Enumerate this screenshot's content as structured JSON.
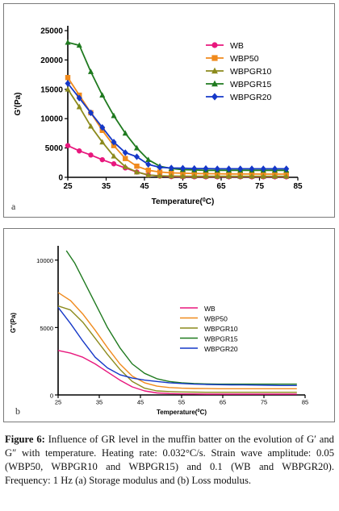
{
  "figure": {
    "caption_label": "Figure 6:",
    "caption_text": "Influence of GR level in the muffin batter on the evolution of G′ and G″ with temperature. Heating rate: 0.032°C/s. Strain wave amplitude: 0.05 (WBP50, WBPGR10 and WBPGR15) and 0.1 (WB and WBPGR20). Frequency: 1 Hz (a) Storage modulus and (b) Loss modulus."
  },
  "chart_data": [
    {
      "type": "line",
      "panel_label": "a",
      "ylabel": "G'(Pa)",
      "xlabel_main": "Temperature(",
      "xlabel_sup": "0",
      "xlabel_end": "C)",
      "xlim": [
        25,
        85
      ],
      "ylim": [
        0,
        25000
      ],
      "x_ticks": [
        25,
        35,
        45,
        55,
        65,
        75,
        85
      ],
      "y_ticks": [
        0,
        5000,
        10000,
        15000,
        20000,
        25000
      ],
      "grid": false,
      "legend_position": "top-right",
      "markers": true,
      "series": [
        {
          "name": "WB",
          "color": "#e8177d",
          "marker": "circle",
          "x": [
            25,
            28,
            31,
            34,
            37,
            40,
            43,
            46,
            49,
            52,
            55,
            58,
            61,
            64,
            67,
            70,
            73,
            76,
            79,
            82
          ],
          "y": [
            5400,
            4500,
            3800,
            3000,
            2300,
            1600,
            900,
            400,
            200,
            120,
            100,
            90,
            85,
            80,
            80,
            80,
            80,
            80,
            80,
            80
          ]
        },
        {
          "name": "WBP50",
          "color": "#f08a1c",
          "marker": "square",
          "x": [
            25,
            28,
            31,
            34,
            37,
            40,
            43,
            46,
            49,
            52,
            55,
            58,
            61,
            64,
            67,
            70,
            73,
            76,
            79,
            82
          ],
          "y": [
            17000,
            14000,
            11000,
            8000,
            5400,
            3200,
            1900,
            1200,
            900,
            750,
            700,
            650,
            620,
            600,
            580,
            570,
            560,
            550,
            550,
            550
          ]
        },
        {
          "name": "WBPGR10",
          "color": "#8c8a1c",
          "marker": "triangle",
          "x": [
            25,
            28,
            31,
            34,
            37,
            40,
            43,
            46,
            49,
            52,
            55,
            58,
            61,
            64,
            67,
            70,
            73,
            76,
            79,
            82
          ],
          "y": [
            15000,
            12000,
            8700,
            6000,
            3600,
            1800,
            900,
            400,
            250,
            200,
            180,
            170,
            160,
            160,
            160,
            160,
            160,
            160,
            160,
            160
          ]
        },
        {
          "name": "WBPGR15",
          "color": "#1f7a1f",
          "marker": "triangle",
          "x": [
            25,
            28,
            31,
            34,
            37,
            40,
            43,
            46,
            49,
            52,
            55,
            58,
            61,
            64,
            67,
            70,
            73,
            76,
            79,
            82
          ],
          "y": [
            23000,
            22500,
            18000,
            14000,
            10500,
            7500,
            5000,
            3000,
            1900,
            1500,
            1300,
            1250,
            1200,
            1200,
            1200,
            1200,
            1200,
            1200,
            1200,
            1200
          ]
        },
        {
          "name": "WBPGR20",
          "color": "#1538c8",
          "marker": "diamond",
          "x": [
            25,
            28,
            31,
            34,
            37,
            40,
            43,
            46,
            49,
            52,
            55,
            58,
            61,
            64,
            67,
            70,
            73,
            76,
            79,
            82
          ],
          "y": [
            16000,
            13500,
            11000,
            8500,
            6000,
            4200,
            3500,
            2200,
            1700,
            1600,
            1550,
            1500,
            1500,
            1450,
            1450,
            1450,
            1450,
            1450,
            1450,
            1450
          ]
        }
      ]
    },
    {
      "type": "line",
      "panel_label": "b",
      "ylabel": "G''(Pa)",
      "xlabel_main": "Temperature(",
      "xlabel_sup": "0",
      "xlabel_end": "C)",
      "xlim": [
        25,
        85
      ],
      "ylim": [
        0,
        10700
      ],
      "x_ticks": [
        25,
        35,
        45,
        55,
        65,
        75,
        85
      ],
      "y_ticks": [
        0,
        5000,
        10000
      ],
      "grid": false,
      "legend_position": "middle-right",
      "markers": false,
      "series": [
        {
          "name": "WB",
          "color": "#e8177d",
          "x": [
            25,
            28,
            31,
            34,
            37,
            40,
            43,
            46,
            49,
            52,
            55,
            58,
            61,
            64,
            67,
            70,
            73,
            76,
            79,
            83
          ],
          "y": [
            3300,
            3100,
            2800,
            2300,
            1700,
            1100,
            600,
            300,
            150,
            100,
            80,
            70,
            60,
            60,
            60,
            60,
            60,
            60,
            60,
            60
          ]
        },
        {
          "name": "WBP50",
          "color": "#f08a1c",
          "x": [
            25,
            28,
            31,
            34,
            37,
            40,
            43,
            46,
            49,
            52,
            55,
            58,
            61,
            64,
            67,
            70,
            73,
            76,
            79,
            83
          ],
          "y": [
            7600,
            7000,
            6000,
            4800,
            3500,
            2300,
            1400,
            900,
            650,
            550,
            500,
            480,
            470,
            460,
            460,
            460,
            460,
            460,
            460,
            460
          ]
        },
        {
          "name": "WBPGR10",
          "color": "#8c8a1c",
          "x": [
            25,
            28,
            31,
            34,
            37,
            40,
            43,
            46,
            49,
            52,
            55,
            58,
            61,
            64,
            67,
            70,
            73,
            76,
            79,
            83
          ],
          "y": [
            6600,
            6300,
            5400,
            4200,
            3000,
            1900,
            1000,
            500,
            300,
            250,
            220,
            210,
            200,
            200,
            200,
            200,
            200,
            200,
            200,
            200
          ]
        },
        {
          "name": "WBPGR15",
          "color": "#1f7a1f",
          "x": [
            27,
            29,
            31,
            34,
            37,
            40,
            43,
            46,
            49,
            52,
            55,
            58,
            61,
            64,
            67,
            70,
            73,
            76,
            79,
            83
          ],
          "y": [
            10700,
            9800,
            8600,
            6800,
            5000,
            3500,
            2300,
            1600,
            1200,
            1000,
            900,
            850,
            820,
            800,
            800,
            800,
            800,
            800,
            800,
            800
          ]
        },
        {
          "name": "WBPGR20",
          "color": "#1538c8",
          "x": [
            25,
            28,
            31,
            34,
            37,
            40,
            43,
            46,
            49,
            52,
            55,
            58,
            61,
            64,
            67,
            70,
            73,
            76,
            79,
            83
          ],
          "y": [
            6500,
            5300,
            4000,
            2800,
            2000,
            1500,
            1250,
            1100,
            1000,
            900,
            850,
            800,
            780,
            760,
            750,
            740,
            730,
            720,
            700,
            700
          ]
        }
      ]
    }
  ]
}
